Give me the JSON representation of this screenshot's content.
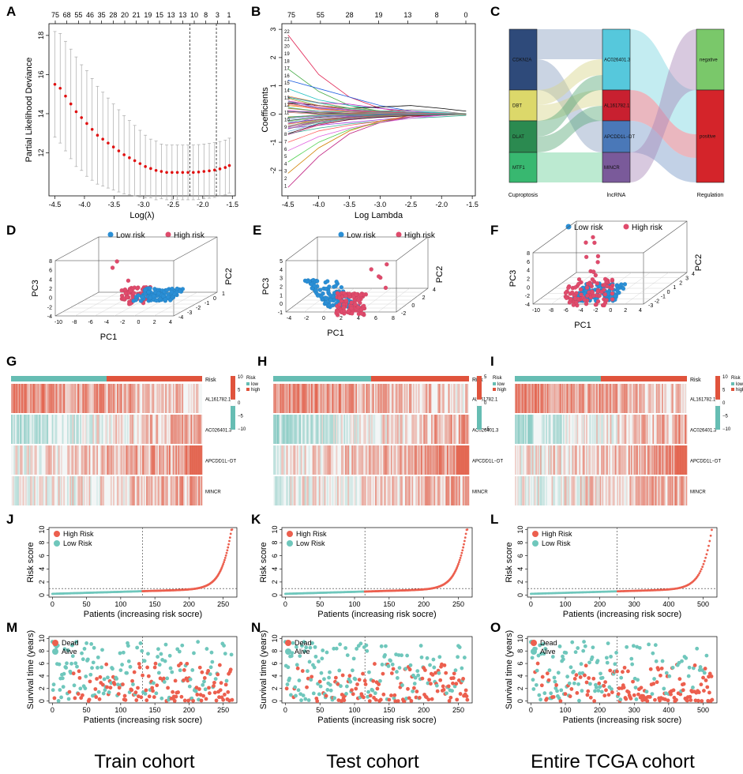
{
  "panel_letters": [
    "A",
    "B",
    "C",
    "D",
    "E",
    "F",
    "G",
    "H",
    "I",
    "J",
    "K",
    "L",
    "M",
    "N",
    "O"
  ],
  "cohort_labels": [
    "Train cohort",
    "Test cohort",
    "Entire TCGA cohort"
  ],
  "colors": {
    "high": "#ec5f4e",
    "low": "#6fc7bc",
    "pca_high": "#e04b6c",
    "pca_low": "#2a8fd6",
    "heat_high": "#e0533c",
    "heat_low": "#66bdb3",
    "cv_point": "#e01010"
  },
  "chart_data": [
    {
      "id": "A",
      "type": "scatter",
      "title": "",
      "xlabel": "Log(λ)",
      "ylabel": "Partial Likelihood Deviance",
      "xlim": [
        -4.6,
        -1.45
      ],
      "ylim": [
        9.8,
        18.6
      ],
      "xticks": [
        "-4.5",
        "-4.0",
        "-3.5",
        "-3.0",
        "-2.5",
        "-2.0",
        "-1.5"
      ],
      "yticks": [
        "12",
        "14",
        "16",
        "18"
      ],
      "top_ticks": [
        "75",
        "68",
        "55",
        "46",
        "35",
        "28",
        "20",
        "21",
        "19",
        "15",
        "13",
        "13",
        "10",
        "8",
        "3",
        "1"
      ],
      "vlines": [
        -2.22,
        -1.77
      ],
      "x": [
        -4.5,
        -4.41,
        -4.32,
        -4.23,
        -4.14,
        -4.05,
        -3.96,
        -3.87,
        -3.78,
        -3.69,
        -3.6,
        -3.51,
        -3.42,
        -3.33,
        -3.24,
        -3.15,
        -3.06,
        -2.97,
        -2.88,
        -2.79,
        -2.7,
        -2.61,
        -2.52,
        -2.43,
        -2.34,
        -2.25,
        -2.16,
        -2.07,
        -1.98,
        -1.89,
        -1.8,
        -1.71,
        -1.62,
        -1.55
      ],
      "y": [
        15.5,
        15.3,
        14.9,
        14.5,
        14.1,
        13.8,
        13.5,
        13.2,
        12.9,
        12.7,
        12.5,
        12.3,
        12.1,
        11.9,
        11.75,
        11.6,
        11.45,
        11.3,
        11.2,
        11.1,
        11.05,
        11.0,
        11.0,
        11.0,
        11.0,
        11.0,
        11.0,
        11.02,
        11.05,
        11.08,
        11.12,
        11.18,
        11.25,
        11.35
      ],
      "err": [
        2.7,
        2.8,
        2.8,
        2.8,
        2.8,
        2.7,
        2.7,
        2.6,
        2.5,
        2.4,
        2.3,
        2.2,
        2.1,
        2.0,
        1.9,
        1.8,
        1.7,
        1.6,
        1.5,
        1.5,
        1.4,
        1.4,
        1.4,
        1.4,
        1.4,
        1.4,
        1.4,
        1.4,
        1.4,
        1.4,
        1.4,
        1.4,
        1.4,
        1.4
      ]
    },
    {
      "id": "B",
      "type": "line",
      "title": "",
      "xlabel": "Log Lambda",
      "ylabel": "Coefficients",
      "xlim": [
        -4.6,
        -1.45
      ],
      "ylim": [
        -2.9,
        3.2
      ],
      "xticks": [
        "-4.5",
        "-4.0",
        "-3.5",
        "-3.0",
        "-2.5",
        "-2.0",
        "-1.5"
      ],
      "yticks": [
        "-2",
        "-1",
        "0",
        "1",
        "2",
        "3"
      ],
      "top_ticks": [
        "75",
        "55",
        "28",
        "19",
        "13",
        "8",
        "0"
      ],
      "series": [
        {
          "name": "path-1",
          "values": [
            2.8,
            1.4,
            0.6,
            0.2,
            0.05,
            0,
            0
          ]
        },
        {
          "name": "path-2",
          "values": [
            1.6,
            0.8,
            0.3,
            0.1,
            0.02,
            0,
            0
          ]
        },
        {
          "name": "path-3",
          "values": [
            1.2,
            0.9,
            0.6,
            0.3,
            0.1,
            0.02,
            0
          ]
        },
        {
          "name": "path-4",
          "values": [
            0.9,
            0.5,
            0.3,
            0.2,
            0.1,
            0.05,
            0
          ]
        },
        {
          "name": "path-5",
          "values": [
            0.6,
            0.4,
            0.35,
            0.2,
            0.1,
            0,
            0
          ]
        },
        {
          "name": "path-6",
          "values": [
            0.4,
            0.3,
            0.2,
            0.25,
            0.3,
            0.2,
            0.1
          ]
        },
        {
          "name": "path-7",
          "values": [
            0.3,
            0.2,
            0.1,
            0.05,
            0.02,
            0,
            0
          ]
        },
        {
          "name": "path-8",
          "values": [
            0.2,
            0.1,
            0.08,
            0.1,
            0.15,
            0.1,
            0
          ]
        },
        {
          "name": "path-9",
          "values": [
            0.1,
            0.05,
            0.04,
            0.06,
            0.05,
            0.02,
            0
          ]
        },
        {
          "name": "path-10",
          "values": [
            -0.1,
            -0.05,
            -0.04,
            -0.02,
            0,
            0,
            0
          ]
        },
        {
          "name": "path-11",
          "values": [
            -0.3,
            -0.2,
            -0.15,
            -0.1,
            -0.05,
            0,
            0
          ]
        },
        {
          "name": "path-12",
          "values": [
            -0.5,
            -0.4,
            -0.3,
            -0.2,
            -0.1,
            -0.05,
            0
          ]
        },
        {
          "name": "path-13",
          "values": [
            -0.7,
            -0.5,
            -0.35,
            -0.25,
            -0.15,
            -0.1,
            -0.05
          ]
        },
        {
          "name": "path-14",
          "values": [
            -1.0,
            -0.6,
            -0.4,
            -0.25,
            -0.1,
            0,
            0
          ]
        },
        {
          "name": "path-15",
          "values": [
            -1.3,
            -0.8,
            -0.5,
            -0.3,
            -0.15,
            -0.05,
            0
          ]
        },
        {
          "name": "path-16",
          "values": [
            -1.7,
            -1.0,
            -0.55,
            -0.3,
            -0.1,
            0,
            0
          ]
        },
        {
          "name": "path-17",
          "values": [
            -2.1,
            -1.2,
            -0.6,
            -0.25,
            -0.05,
            0,
            0
          ]
        },
        {
          "name": "path-18",
          "values": [
            -2.6,
            -1.5,
            -0.7,
            -0.3,
            -0.1,
            0,
            0
          ]
        }
      ]
    },
    {
      "id": "C",
      "type": "sankey",
      "columns": [
        {
          "title": "Cuproptosis",
          "nodes": [
            "CDKN2A",
            "DBT",
            "DLAT",
            "MTF1"
          ]
        },
        {
          "title": "lncRNA",
          "nodes": [
            "AC026401.3",
            "AL161782.1",
            "APCDD1L−DT",
            "MINCR"
          ]
        },
        {
          "title": "Regulation",
          "nodes": [
            "negative",
            "positive"
          ]
        }
      ]
    },
    {
      "id": "D",
      "type": "scatter",
      "subtype": "pca3d",
      "legend": [
        "Low risk",
        "High risk"
      ],
      "xlabel": "PC1",
      "ylabel": "PC2",
      "zlabel": "PC3",
      "x_ticks": [
        "-10",
        "-8",
        "-6",
        "-4",
        "-2",
        "0",
        "2",
        "4"
      ],
      "y_ticks": [
        "-4",
        "-3",
        "-2",
        "-1",
        "0",
        "1"
      ],
      "z_ticks": [
        "-4",
        "-2",
        "0",
        "2",
        "4",
        "6",
        "8"
      ]
    },
    {
      "id": "E",
      "type": "scatter",
      "subtype": "pca3d",
      "legend": [
        "Low risk",
        "High risk"
      ],
      "xlabel": "PC1",
      "ylabel": "PC2",
      "zlabel": "PC3",
      "x_ticks": [
        "-4",
        "-2",
        "0",
        "2",
        "4",
        "6",
        "8"
      ],
      "y_ticks": [
        "-2",
        "0",
        "2",
        "4"
      ],
      "z_ticks": [
        "-1",
        "0",
        "1",
        "2",
        "3",
        "4",
        "5"
      ]
    },
    {
      "id": "F",
      "type": "scatter",
      "subtype": "pca3d",
      "legend": [
        "Low risk",
        "High risk"
      ],
      "xlabel": "PC1",
      "ylabel": "PC2",
      "zlabel": "PC3",
      "x_ticks": [
        "-10",
        "-8",
        "-6",
        "-4",
        "-2",
        "0",
        "2",
        "4"
      ],
      "y_ticks": [
        "-3",
        "-2",
        "-1",
        "0",
        "1",
        "2",
        "3",
        "4"
      ],
      "z_ticks": [
        "-4",
        "-2",
        "0",
        "2",
        "4",
        "6",
        "8"
      ]
    },
    {
      "id": "G",
      "type": "heatmap",
      "row_labels": [
        "AL161782.1",
        "AC026401.3",
        "APCDD1L−DT",
        "MINCR"
      ],
      "annotation": "Risk",
      "annotation_legend": {
        "title": "Risk",
        "items": [
          "low",
          "high"
        ]
      },
      "scale_ticks": [
        "10",
        "5",
        "0",
        "−5",
        "−10"
      ]
    },
    {
      "id": "H",
      "type": "heatmap",
      "row_labels": [
        "AL161782.1",
        "AC026401.3",
        "APCDD1L−DT",
        "MINCR"
      ],
      "annotation": "Risk",
      "annotation_legend": {
        "title": "Risk",
        "items": [
          "low",
          "high"
        ]
      },
      "scale_ticks": [
        "5",
        "0",
        "−5"
      ]
    },
    {
      "id": "I",
      "type": "heatmap",
      "row_labels": [
        "AL161782.1",
        "AC026401.3",
        "APCDD1L−DT",
        "MINCR"
      ],
      "annotation": "Risk",
      "annotation_legend": {
        "title": "Risk",
        "items": [
          "low",
          "high"
        ]
      },
      "scale_ticks": [
        "10",
        "5",
        "0",
        "−5",
        "−10"
      ]
    },
    {
      "id": "J",
      "type": "scatter",
      "subtype": "risk_curve",
      "n": 264,
      "cutoff_index": 132,
      "cutoff_score": 1.0,
      "xlabel": "Patients (increasing risk socre)",
      "ylabel": "Risk score",
      "xticks": [
        "0",
        "50",
        "100",
        "150",
        "200",
        "250"
      ],
      "yticks": [
        "0",
        "2",
        "4",
        "6",
        "8",
        "10"
      ],
      "xlim": [
        -5,
        270
      ],
      "ylim": [
        -0.3,
        10.3
      ],
      "legend": [
        "High Risk",
        "Low Risk"
      ]
    },
    {
      "id": "K",
      "type": "scatter",
      "subtype": "risk_curve",
      "n": 264,
      "cutoff_index": 115,
      "cutoff_score": 1.0,
      "xlabel": "Patients (increasing risk socre)",
      "ylabel": "Risk score",
      "xticks": [
        "0",
        "50",
        "100",
        "150",
        "200",
        "250"
      ],
      "yticks": [
        "0",
        "2",
        "4",
        "6",
        "8",
        "10"
      ],
      "xlim": [
        -5,
        270
      ],
      "ylim": [
        -0.3,
        10.3
      ],
      "legend": [
        "High Risk",
        "Low Risk"
      ]
    },
    {
      "id": "L",
      "type": "scatter",
      "subtype": "risk_curve",
      "n": 528,
      "cutoff_index": 250,
      "cutoff_score": 1.0,
      "xlabel": "Patients (increasing risk socre)",
      "ylabel": "Risk score",
      "xticks": [
        "0",
        "100",
        "200",
        "300",
        "400",
        "500"
      ],
      "yticks": [
        "0",
        "2",
        "4",
        "6",
        "8",
        "10"
      ],
      "xlim": [
        -10,
        540
      ],
      "ylim": [
        -0.3,
        10.3
      ],
      "legend": [
        "High Risk",
        "Low Risk"
      ]
    },
    {
      "id": "M",
      "type": "scatter",
      "subtype": "survival_status",
      "n": 264,
      "cutoff_index": 132,
      "xlabel": "Patients (increasing risk socre)",
      "ylabel": "Survival time (years)",
      "xticks": [
        "0",
        "50",
        "100",
        "150",
        "200",
        "250"
      ],
      "yticks": [
        "0",
        "2",
        "4",
        "6",
        "8",
        "10"
      ],
      "xlim": [
        -5,
        270
      ],
      "ylim": [
        -0.3,
        10.3
      ],
      "legend": [
        "Dead",
        "Alive"
      ]
    },
    {
      "id": "N",
      "type": "scatter",
      "subtype": "survival_status",
      "n": 264,
      "cutoff_index": 115,
      "xlabel": "Patients (increasing risk socre)",
      "ylabel": "Survival time (years)",
      "xticks": [
        "0",
        "50",
        "100",
        "150",
        "200",
        "250"
      ],
      "yticks": [
        "0",
        "2",
        "4",
        "6",
        "8",
        "10"
      ],
      "xlim": [
        -5,
        270
      ],
      "ylim": [
        -0.3,
        10.3
      ],
      "legend": [
        "Dead",
        "Alive"
      ]
    },
    {
      "id": "O",
      "type": "scatter",
      "subtype": "survival_status",
      "n": 528,
      "cutoff_index": 250,
      "xlabel": "Patients (increasing risk socre)",
      "ylabel": "Survival time (years)",
      "xticks": [
        "0",
        "100",
        "200",
        "300",
        "400",
        "500"
      ],
      "yticks": [
        "0",
        "2",
        "4",
        "6",
        "8",
        "10"
      ],
      "xlim": [
        -10,
        540
      ],
      "ylim": [
        -0.3,
        10.3
      ],
      "legend": [
        "Dead",
        "Alive"
      ]
    }
  ]
}
